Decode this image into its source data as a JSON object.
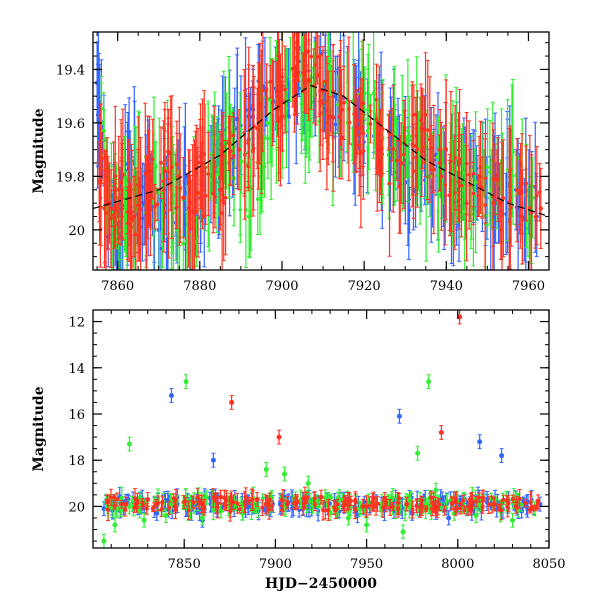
{
  "chart_data": [
    {
      "type": "scatter",
      "title": "",
      "xlabel": "",
      "ylabel": "Magnitude",
      "xlim": [
        7854,
        7965
      ],
      "ylim": [
        20.15,
        19.26
      ],
      "y_inverted": true,
      "xticks": [
        7860,
        7880,
        7900,
        7920,
        7940,
        7960
      ],
      "yticks": [
        19.4,
        19.6,
        19.8,
        20
      ],
      "ytick_labels": [
        "19.4",
        "19.6",
        "19.8",
        "20"
      ],
      "grid": false,
      "error_bars": true,
      "series_colors": [
        "#3366ff",
        "#33ee33",
        "#ff3322"
      ],
      "series": [
        {
          "color": "#3366ff",
          "points": [
            [
              7855.0,
              19.45
            ],
            [
              7857.5,
              19.92
            ],
            [
              7860.0,
              20.06
            ],
            [
              7862.5,
              19.78
            ],
            [
              7866.0,
              19.9
            ],
            [
              7870.0,
              20.0
            ],
            [
              7874.5,
              19.85
            ],
            [
              7879.0,
              19.95
            ],
            [
              7884.0,
              19.75
            ],
            [
              7888.5,
              19.62
            ],
            [
              7893.0,
              19.55
            ],
            [
              7898.0,
              19.52
            ],
            [
              7903.5,
              19.45
            ],
            [
              7908.0,
              19.43
            ],
            [
              7913.0,
              19.5
            ],
            [
              7918.0,
              19.58
            ],
            [
              7923.0,
              19.62
            ],
            [
              7927.5,
              19.7
            ],
            [
              7932.0,
              19.85
            ],
            [
              7937.5,
              19.72
            ],
            [
              7942.5,
              19.85
            ],
            [
              7947.0,
              19.78
            ],
            [
              7952.0,
              19.9
            ],
            [
              7957.0,
              19.85
            ],
            [
              7962.0,
              19.95
            ]
          ]
        },
        {
          "color": "#33ee33",
          "points": [
            [
              7856.0,
              19.6
            ],
            [
              7858.5,
              19.96
            ],
            [
              7862.0,
              19.95
            ],
            [
              7865.0,
              19.86
            ],
            [
              7869.0,
              19.82
            ],
            [
              7873.5,
              19.9
            ],
            [
              7878.0,
              20.02
            ],
            [
              7883.0,
              19.72
            ],
            [
              7887.5,
              19.68
            ],
            [
              7892.0,
              19.95
            ],
            [
              7896.5,
              19.6
            ],
            [
              7901.0,
              19.48
            ],
            [
              7906.0,
              19.5
            ],
            [
              7911.0,
              19.52
            ],
            [
              7916.0,
              19.6
            ],
            [
              7921.0,
              19.55
            ],
            [
              7926.0,
              19.72
            ],
            [
              7931.0,
              19.65
            ],
            [
              7936.0,
              19.8
            ],
            [
              7941.0,
              19.75
            ],
            [
              7946.0,
              19.92
            ],
            [
              7951.0,
              19.85
            ],
            [
              7956.0,
              19.8
            ],
            [
              7961.0,
              19.88
            ]
          ]
        },
        {
          "color": "#ff3322",
          "points": [
            [
              7855.5,
              19.82
            ],
            [
              7858.0,
              19.9
            ],
            [
              7861.0,
              19.88
            ],
            [
              7864.0,
              19.95
            ],
            [
              7867.5,
              19.84
            ],
            [
              7871.5,
              19.78
            ],
            [
              7876.0,
              19.88
            ],
            [
              7880.5,
              19.82
            ],
            [
              7885.0,
              19.85
            ],
            [
              7889.5,
              19.7
            ],
            [
              7894.0,
              19.62
            ],
            [
              7899.0,
              19.5
            ],
            [
              7903.0,
              19.42
            ],
            [
              7906.5,
              19.44
            ],
            [
              7910.0,
              19.48
            ],
            [
              7914.5,
              19.55
            ],
            [
              7919.0,
              19.62
            ],
            [
              7924.0,
              19.7
            ],
            [
              7929.0,
              19.75
            ],
            [
              7934.0,
              19.62
            ],
            [
              7938.5,
              19.7
            ],
            [
              7943.0,
              19.82
            ],
            [
              7948.0,
              19.8
            ],
            [
              7953.0,
              19.9
            ],
            [
              7958.0,
              19.85
            ],
            [
              7963.0,
              19.92
            ]
          ]
        }
      ],
      "model_curve": [
        [
          7854,
          19.92
        ],
        [
          7870,
          19.85
        ],
        [
          7885,
          19.72
        ],
        [
          7898,
          19.55
        ],
        [
          7907,
          19.46
        ],
        [
          7915,
          19.5
        ],
        [
          7925,
          19.62
        ],
        [
          7935,
          19.74
        ],
        [
          7945,
          19.82
        ],
        [
          7955,
          19.9
        ],
        [
          7965,
          19.95
        ]
      ]
    },
    {
      "type": "scatter",
      "title": "",
      "xlabel": "HJD−2450000",
      "ylabel": "Magnitude",
      "xlim": [
        7800,
        8050
      ],
      "ylim": [
        21.8,
        11.5
      ],
      "y_inverted": true,
      "xticks": [
        7850,
        7900,
        7950,
        8000,
        8050
      ],
      "yticks": [
        12,
        14,
        16,
        18,
        20
      ],
      "ytick_labels": [
        "12",
        "14",
        "16",
        "18",
        "20"
      ],
      "grid": false,
      "error_bars": true,
      "series_colors": [
        "#3366ff",
        "#33ee33",
        "#ff3322"
      ],
      "series": [
        {
          "color": "#3366ff",
          "points": [
            [
              7806,
              20.1
            ],
            [
              7815,
              20.2
            ],
            [
              7825,
              19.9
            ],
            [
              7835,
              20.3
            ],
            [
              7843,
              15.2
            ],
            [
              7852,
              20.1
            ],
            [
              7860,
              20.6
            ],
            [
              7866,
              18.0
            ],
            [
              7875,
              20.0
            ],
            [
              7885,
              19.8
            ],
            [
              7895,
              19.9
            ],
            [
              7905,
              19.6
            ],
            [
              7915,
              19.7
            ],
            [
              7922,
              19.8
            ],
            [
              7935,
              20.2
            ],
            [
              7945,
              20.4
            ],
            [
              7958,
              19.9
            ],
            [
              7968,
              16.1
            ],
            [
              7975,
              20.3
            ],
            [
              7985,
              20.0
            ],
            [
              7995,
              20.5
            ],
            [
              8005,
              20.1
            ],
            [
              8012,
              17.2
            ],
            [
              8024,
              17.8
            ],
            [
              8035,
              20.2
            ],
            [
              8045,
              19.9
            ]
          ]
        },
        {
          "color": "#33ee33",
          "points": [
            [
              7806,
              21.5
            ],
            [
              7812,
              20.8
            ],
            [
              7820,
              17.3
            ],
            [
              7828,
              20.6
            ],
            [
              7840,
              20.4
            ],
            [
              7851,
              14.6
            ],
            [
              7860,
              20.5
            ],
            [
              7870,
              20.2
            ],
            [
              7882,
              20.3
            ],
            [
              7895,
              18.4
            ],
            [
              7905,
              18.6
            ],
            [
              7918,
              19.0
            ],
            [
              7930,
              20.3
            ],
            [
              7940,
              20.5
            ],
            [
              7950,
              20.8
            ],
            [
              7962,
              19.8
            ],
            [
              7970,
              21.1
            ],
            [
              7978,
              17.7
            ],
            [
              7984,
              14.6
            ],
            [
              7988,
              19.3
            ],
            [
              7998,
              20.3
            ],
            [
              8010,
              20.4
            ],
            [
              8020,
              19.9
            ],
            [
              8030,
              20.6
            ],
            [
              8042,
              20.1
            ]
          ]
        },
        {
          "color": "#ff3322",
          "points": [
            [
              7808,
              19.8
            ],
            [
              7818,
              19.9
            ],
            [
              7830,
              19.7
            ],
            [
              7845,
              20.0
            ],
            [
              7858,
              19.8
            ],
            [
              7870,
              19.6
            ],
            [
              7876,
              15.5
            ],
            [
              7890,
              19.7
            ],
            [
              7902,
              17.0
            ],
            [
              7912,
              19.8
            ],
            [
              7925,
              19.6
            ],
            [
              7938,
              19.9
            ],
            [
              7948,
              20.0
            ],
            [
              7960,
              19.7
            ],
            [
              7972,
              19.9
            ],
            [
              7986,
              20.1
            ],
            [
              7991,
              16.8
            ],
            [
              8001,
              11.8
            ],
            [
              8008,
              19.8
            ],
            [
              8020,
              19.9
            ],
            [
              8032,
              20.0
            ],
            [
              8044,
              19.8
            ]
          ]
        }
      ]
    }
  ]
}
